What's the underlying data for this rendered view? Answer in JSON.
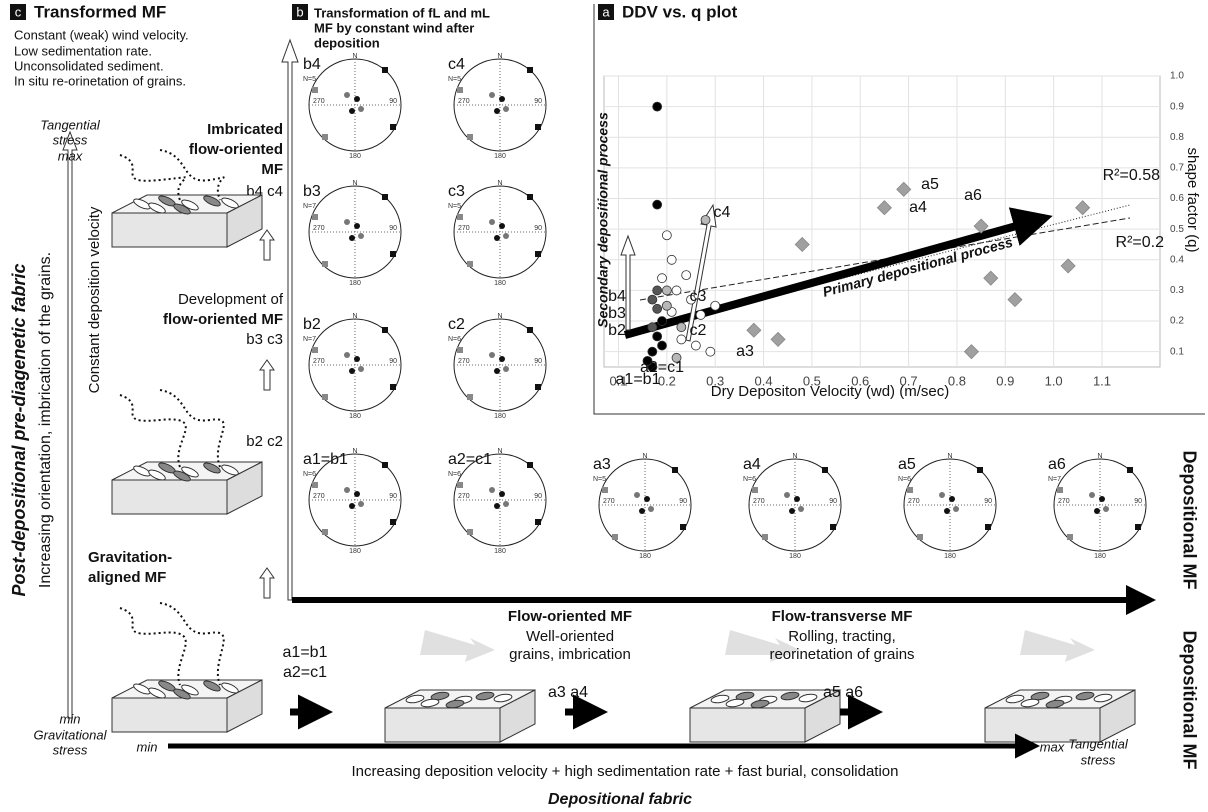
{
  "panel_c": {
    "letter": "c",
    "title": "Transformed MF",
    "notes": [
      "Constant (weak) wind velocity.",
      "Low sedimentation rate.",
      "Unconsolidated sediment.",
      "In situ re-orinetation of grains."
    ],
    "axis_top": [
      "Tangential",
      "stress",
      "max"
    ],
    "axis_bottom": [
      "min",
      "Gravitational",
      "stress"
    ],
    "vertical_title": "Post-depositional pre-diagenetic fabric",
    "vertical_subtitle": "Increasing orientation, imbrication of the grains.",
    "vertical_arrow_label": "Constant deposition velocity",
    "stage_imbricated": [
      "Imbricated",
      "flow-oriented",
      "MF"
    ],
    "stage_imbricated_ids": "b4 c4",
    "stage_development": [
      "Development of",
      "flow-oriented MF"
    ],
    "stage_development_ids": "b3 c3",
    "stage_early_ids": "b2 c2",
    "stage_gravitation": [
      "Gravitation-",
      "aligned MF"
    ]
  },
  "panel_b": {
    "letter": "b",
    "title": [
      "Transformation of fL and mL",
      "MF by constant wind after",
      "deposition"
    ]
  },
  "stereonet_axis_labels": {
    "north": "N",
    "east": "90",
    "south": "180",
    "west": "270"
  },
  "stereonets": [
    {
      "label": "b4",
      "n": "N=5"
    },
    {
      "label": "c4",
      "n": "N=5"
    },
    {
      "label": "b3",
      "n": "N=7"
    },
    {
      "label": "c3",
      "n": "N=5"
    },
    {
      "label": "b2",
      "n": "N=7"
    },
    {
      "label": "c2",
      "n": "N=6"
    },
    {
      "label": "a1=b1",
      "n": "N=6"
    },
    {
      "label": "a2=c1",
      "n": "N=6"
    },
    {
      "label": "a3",
      "n": "N=5"
    },
    {
      "label": "a4",
      "n": "N=6"
    },
    {
      "label": "a5",
      "n": "N=6"
    },
    {
      "label": "a6",
      "n": "N=7"
    }
  ],
  "right_labels": [
    "Depositional MF",
    "Depositional MF"
  ],
  "bottom": {
    "stage_flow_oriented": [
      "Flow-oriented MF",
      "Well-oriented",
      "grains, imbrication"
    ],
    "stage_flow_transverse": [
      "Flow-transverse MF",
      "Rolling, tracting,",
      "reorinetation of grains"
    ],
    "ids": [
      "a1=b1",
      "a2=c1",
      "a3   a4",
      "a5   a6"
    ],
    "axis_min": "min",
    "axis_max": "max",
    "axis_right": [
      "Tangential",
      "stress"
    ],
    "axis_caption": "Increasing deposition velocity + high sedimentation rate + fast burial, consolidation",
    "title": "Depositional fabric"
  },
  "chart_data": {
    "type": "scatter",
    "letter": "a",
    "title": "DDV vs. q plot",
    "x_label": "Dry Depositon Velocity (wd) (m/sec)",
    "y_label": "shape factor (q)",
    "left_label": "Secondary depositional process",
    "trend_label": "Primary depositional process",
    "xlim": [
      0.07,
      1.22
    ],
    "xticks": [
      0.1,
      0.2,
      0.3,
      0.4,
      0.5,
      0.6,
      0.7,
      0.8,
      0.9,
      {
        "value": 1.0,
        "label": "1.0"
      },
      1.1
    ],
    "ylim": [
      0.05,
      1.0
    ],
    "yticks": [
      0.1,
      0.2,
      0.3,
      0.4,
      0.5,
      0.6,
      0.7,
      0.8,
      0.9,
      {
        "value": 1.0,
        "label": "1.0"
      }
    ],
    "grid": true,
    "series": [
      {
        "marker": "diamond",
        "color": "#a0a0a0",
        "x": [
          0.38,
          0.43,
          0.48,
          0.65,
          0.69,
          0.83,
          0.85,
          0.87,
          0.92,
          1.03,
          1.06
        ],
        "values": [
          0.17,
          0.14,
          0.45,
          0.57,
          0.63,
          0.1,
          0.51,
          0.34,
          0.27,
          0.38,
          0.57
        ]
      },
      {
        "marker": "circle",
        "color": "#ffffff",
        "x": [
          0.2,
          0.21,
          0.19,
          0.22,
          0.24,
          0.25,
          0.27,
          0.29,
          0.23,
          0.21,
          0.3,
          0.26
        ],
        "values": [
          0.48,
          0.4,
          0.34,
          0.3,
          0.35,
          0.27,
          0.22,
          0.1,
          0.14,
          0.23,
          0.25,
          0.12
        ]
      },
      {
        "marker": "circle",
        "color": "#b8b8b8",
        "x": [
          0.28,
          0.2,
          0.23,
          0.22,
          0.2
        ],
        "values": [
          0.53,
          0.25,
          0.18,
          0.08,
          0.3
        ]
      },
      {
        "marker": "circle",
        "color": "#555555",
        "x": [
          0.18,
          0.17,
          0.18,
          0.17
        ],
        "values": [
          0.3,
          0.27,
          0.24,
          0.18
        ]
      },
      {
        "marker": "circle",
        "color": "#000000",
        "x": [
          0.18,
          0.18,
          0.17,
          0.16,
          0.17,
          0.19,
          0.18,
          0.19
        ],
        "values": [
          0.9,
          0.58,
          0.05,
          0.07,
          0.1,
          0.12,
          0.15,
          0.2
        ]
      }
    ],
    "annotations": [
      "a5",
      "a4",
      "a6",
      "c4",
      "b4",
      "b3",
      "c3",
      "b2",
      "c2",
      "a3",
      "a2=c1",
      "a1=b1",
      "R²=0.58",
      "R²=0.2"
    ]
  }
}
